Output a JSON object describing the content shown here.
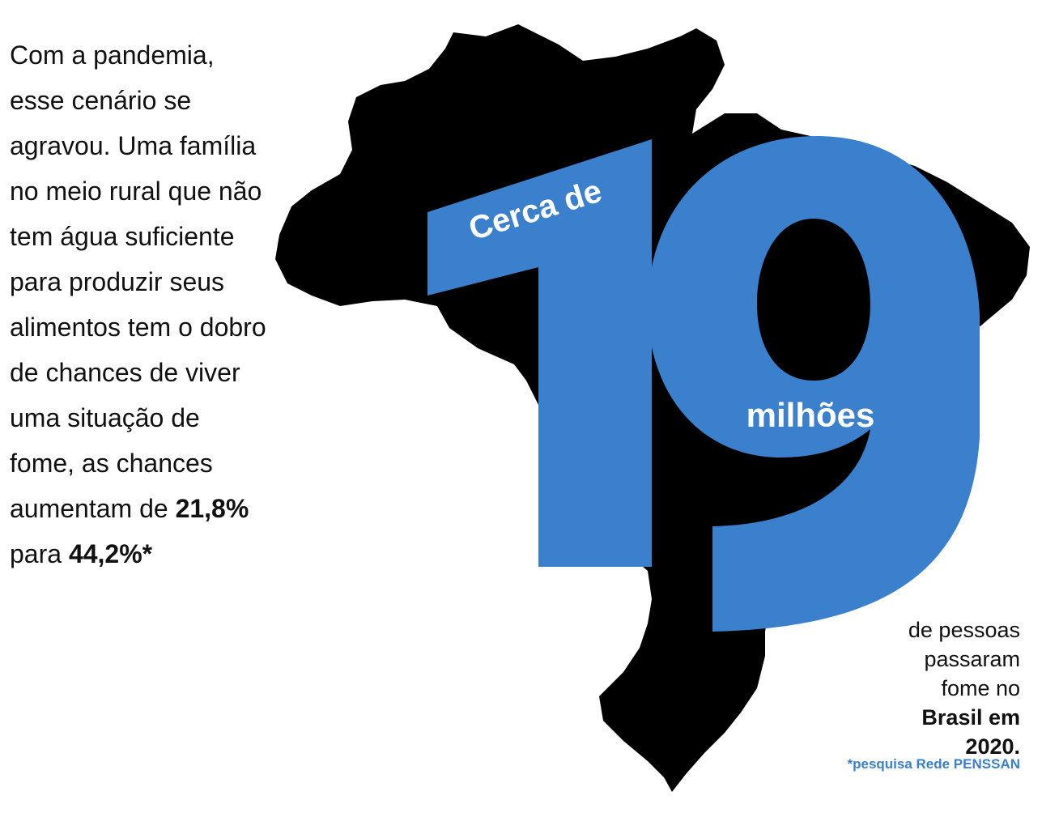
{
  "intro": {
    "lines": [
      "Com a pandemia,",
      "esse cenário se",
      "agravou. Uma família",
      "no meio rural que não",
      "tem água suficiente",
      "para produzir seus",
      "alimentos tem o dobro",
      "de chances de viver",
      "uma situação de",
      "fome, as chances"
    ],
    "line11_prefix": "aumentam de ",
    "value_from": "21,8%",
    "line12_prefix": "para ",
    "value_to": "44,2%*"
  },
  "highlight": {
    "prefix": "Cerca de",
    "number": "19",
    "unit": "milhões"
  },
  "caption": {
    "line1": "de pessoas",
    "line2": "passaram",
    "line3": "fome no",
    "line4": "Brasil em",
    "line5": "2020.",
    "source": "*pesquisa Rede PENSSAN"
  },
  "colors": {
    "map": "#000000",
    "accent": "#3a80cc",
    "text": "#111111"
  }
}
